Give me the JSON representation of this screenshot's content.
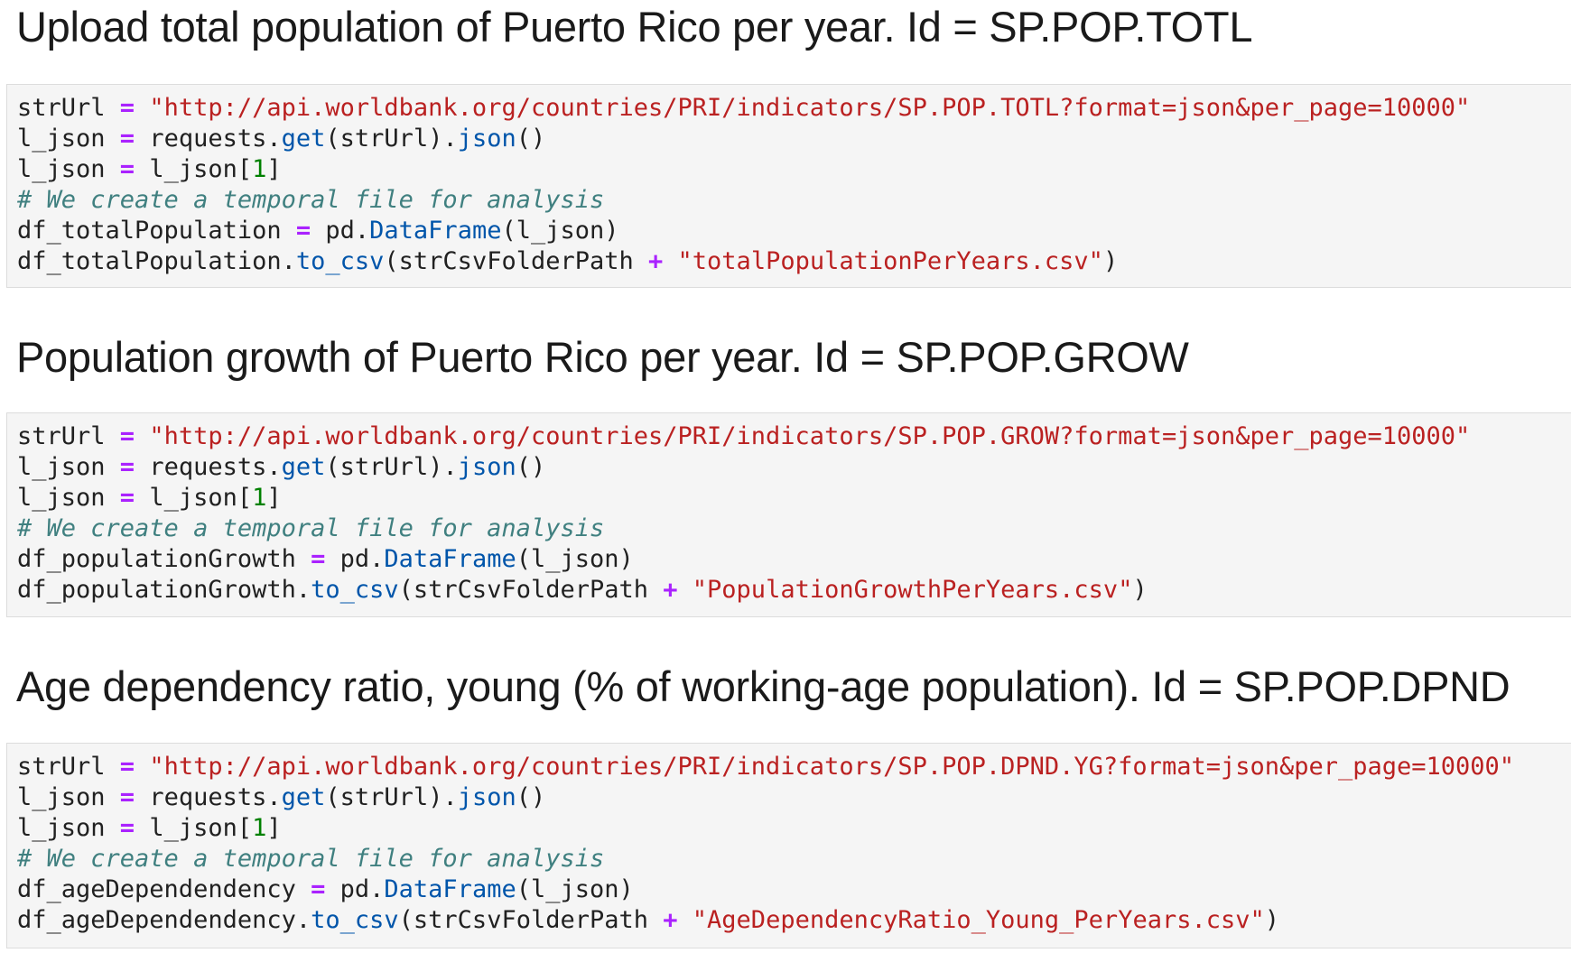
{
  "cells": [
    {
      "heading": "Upload total population of Puerto Rico per year. Id = SP.POP.TOTL",
      "code": {
        "line1_var": "strUrl ",
        "line1_op": "=",
        "line1_str": " \"http://api.worldbank.org/countries/PRI/indicators/SP.POP.TOTL?format=json&per_page=10000\"",
        "line2_var": "l_json ",
        "line2_op": "=",
        "line2_a": " requests.",
        "line2_get": "get",
        "line2_b": "(strUrl).",
        "line2_json": "json",
        "line2_c": "()",
        "line3_var": "l_json ",
        "line3_op": "=",
        "line3_a": " l_json[",
        "line3_num": "1",
        "line3_b": "]",
        "line4_comment": "# We create a temporal file for analysis",
        "line5_var": "df_totalPopulation ",
        "line5_op": "=",
        "line5_a": " pd.",
        "line5_df": "DataFrame",
        "line5_b": "(l_json)",
        "line6_var": "df_totalPopulation.",
        "line6_tocsv": "to_csv",
        "line6_a": "(strCsvFolderPath ",
        "line6_op": "+",
        "line6_str": " \"totalPopulationPerYears.csv\"",
        "line6_b": ")"
      }
    },
    {
      "heading": "Population growth of Puerto Rico per year. Id = SP.POP.GROW",
      "code": {
        "line1_var": "strUrl ",
        "line1_op": "=",
        "line1_str": " \"http://api.worldbank.org/countries/PRI/indicators/SP.POP.GROW?format=json&per_page=10000\"",
        "line2_var": "l_json ",
        "line2_op": "=",
        "line2_a": " requests.",
        "line2_get": "get",
        "line2_b": "(strUrl).",
        "line2_json": "json",
        "line2_c": "()",
        "line3_var": "l_json ",
        "line3_op": "=",
        "line3_a": " l_json[",
        "line3_num": "1",
        "line3_b": "]",
        "line4_comment": "# We create a temporal file for analysis",
        "line5_var": "df_populationGrowth ",
        "line5_op": "=",
        "line5_a": " pd.",
        "line5_df": "DataFrame",
        "line5_b": "(l_json)",
        "line6_var": "df_populationGrowth.",
        "line6_tocsv": "to_csv",
        "line6_a": "(strCsvFolderPath ",
        "line6_op": "+",
        "line6_str": " \"PopulationGrowthPerYears.csv\"",
        "line6_b": ")"
      }
    },
    {
      "heading": "Age dependency ratio, young (% of working-age population). Id = SP.POP.DPND",
      "code": {
        "line1_var": "strUrl ",
        "line1_op": "=",
        "line1_str": " \"http://api.worldbank.org/countries/PRI/indicators/SP.POP.DPND.YG?format=json&per_page=10000\"",
        "line2_var": "l_json ",
        "line2_op": "=",
        "line2_a": " requests.",
        "line2_get": "get",
        "line2_b": "(strUrl).",
        "line2_json": "json",
        "line2_c": "()",
        "line3_var": "l_json ",
        "line3_op": "=",
        "line3_a": " l_json[",
        "line3_num": "1",
        "line3_b": "]",
        "line4_comment": "# We create a temporal file for analysis",
        "line5_var": "df_ageDependendency ",
        "line5_op": "=",
        "line5_a": " pd.",
        "line5_df": "DataFrame",
        "line5_b": "(l_json)",
        "line6_var": "df_ageDependendency.",
        "line6_tocsv": "to_csv",
        "line6_a": "(strCsvFolderPath ",
        "line6_op": "+",
        "line6_str": " \"AgeDependencyRatio_Young_PerYears.csv\"",
        "line6_b": ")"
      }
    }
  ],
  "colors": {
    "operator": "#aa22ff",
    "string": "#ba2121",
    "number": "#008000",
    "attribute": "#0055aa",
    "comment": "#408080",
    "cell_background": "#f5f5f5"
  }
}
